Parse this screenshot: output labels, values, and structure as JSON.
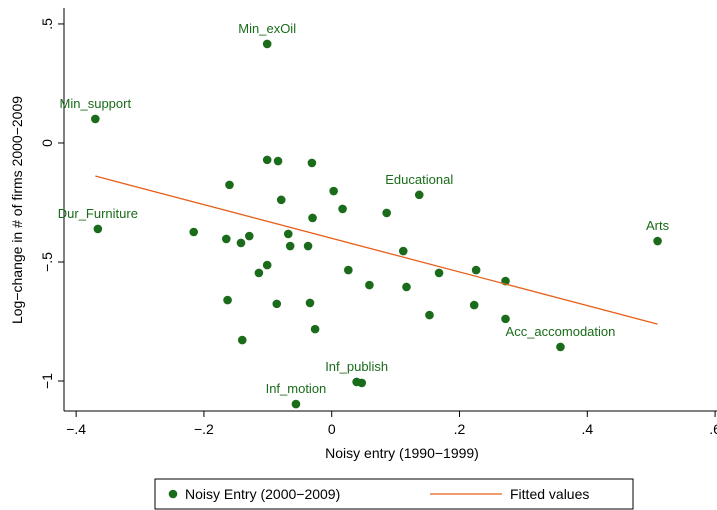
{
  "chart_data": {
    "type": "scatter",
    "xlabel": "Noisy entry (1990−1999)",
    "ylabel": "Log−change in # of firms 2000−2009",
    "xlim": [
      -0.419,
      0.603
    ],
    "ylim": [
      -1.126,
      0.567
    ],
    "xticks": [
      {
        "value": -0.4,
        "label": "−.4"
      },
      {
        "value": -0.2,
        "label": "−.2"
      },
      0,
      {
        "value": 0.2,
        "label": ".2"
      },
      {
        "value": 0.4,
        "label": ".4"
      },
      {
        "value": 0.6,
        "label": ".6"
      }
    ],
    "yticks": [
      {
        "value": -1,
        "label": "−1"
      },
      {
        "value": -0.5,
        "label": "−.5"
      },
      0,
      {
        "value": 0.5,
        "label": ".5"
      }
    ],
    "grid": false,
    "legend": "bottom",
    "series": [
      {
        "name": "Noisy Entry (2000−2009)",
        "type": "scatter",
        "color": "#1a6b1a",
        "x": [
          -0.101,
          -0.37,
          -0.366,
          0.137,
          0.51,
          0.358,
          0.039,
          0.047,
          -0.056,
          -0.101,
          -0.084,
          -0.031,
          -0.16,
          0.003,
          -0.079,
          0.017,
          0.086,
          -0.03,
          -0.216,
          -0.165,
          -0.129,
          -0.068,
          -0.142,
          -0.065,
          -0.037,
          0.112,
          -0.101,
          -0.114,
          0.026,
          0.168,
          0.226,
          0.272,
          0.059,
          0.117,
          -0.163,
          -0.086,
          -0.034,
          0.223,
          0.153,
          0.272,
          -0.026,
          -0.14
        ],
        "values": [
          0.416,
          0.101,
          -0.361,
          -0.218,
          -0.412,
          -0.857,
          -1.004,
          -1.008,
          -1.097,
          -0.071,
          -0.076,
          -0.084,
          -0.176,
          -0.202,
          -0.239,
          -0.277,
          -0.294,
          -0.315,
          -0.374,
          -0.403,
          -0.391,
          -0.382,
          -0.42,
          -0.433,
          -0.433,
          -0.454,
          -0.513,
          -0.546,
          -0.534,
          -0.546,
          -0.534,
          -0.58,
          -0.597,
          -0.605,
          -0.66,
          -0.676,
          -0.672,
          -0.681,
          -0.723,
          -0.739,
          -0.782,
          -0.828
        ],
        "labels": [
          "Min_exOil",
          "Min_support",
          "Dur_Furniture",
          "Educational",
          "Arts",
          "Acc_accomodation",
          "Inf_publish",
          null,
          "Inf_motion",
          null,
          null,
          null,
          null,
          null,
          null,
          null,
          null,
          null,
          null,
          null,
          null,
          null,
          null,
          null,
          null,
          null,
          null,
          null,
          null,
          null,
          null,
          null,
          null,
          null,
          null,
          null,
          null,
          null,
          null,
          null,
          null,
          null
        ]
      },
      {
        "name": "Fitted values",
        "type": "line",
        "color": "#e8601c",
        "x": [
          -0.37,
          0.51
        ],
        "values": [
          -0.139,
          -0.761
        ]
      }
    ]
  }
}
